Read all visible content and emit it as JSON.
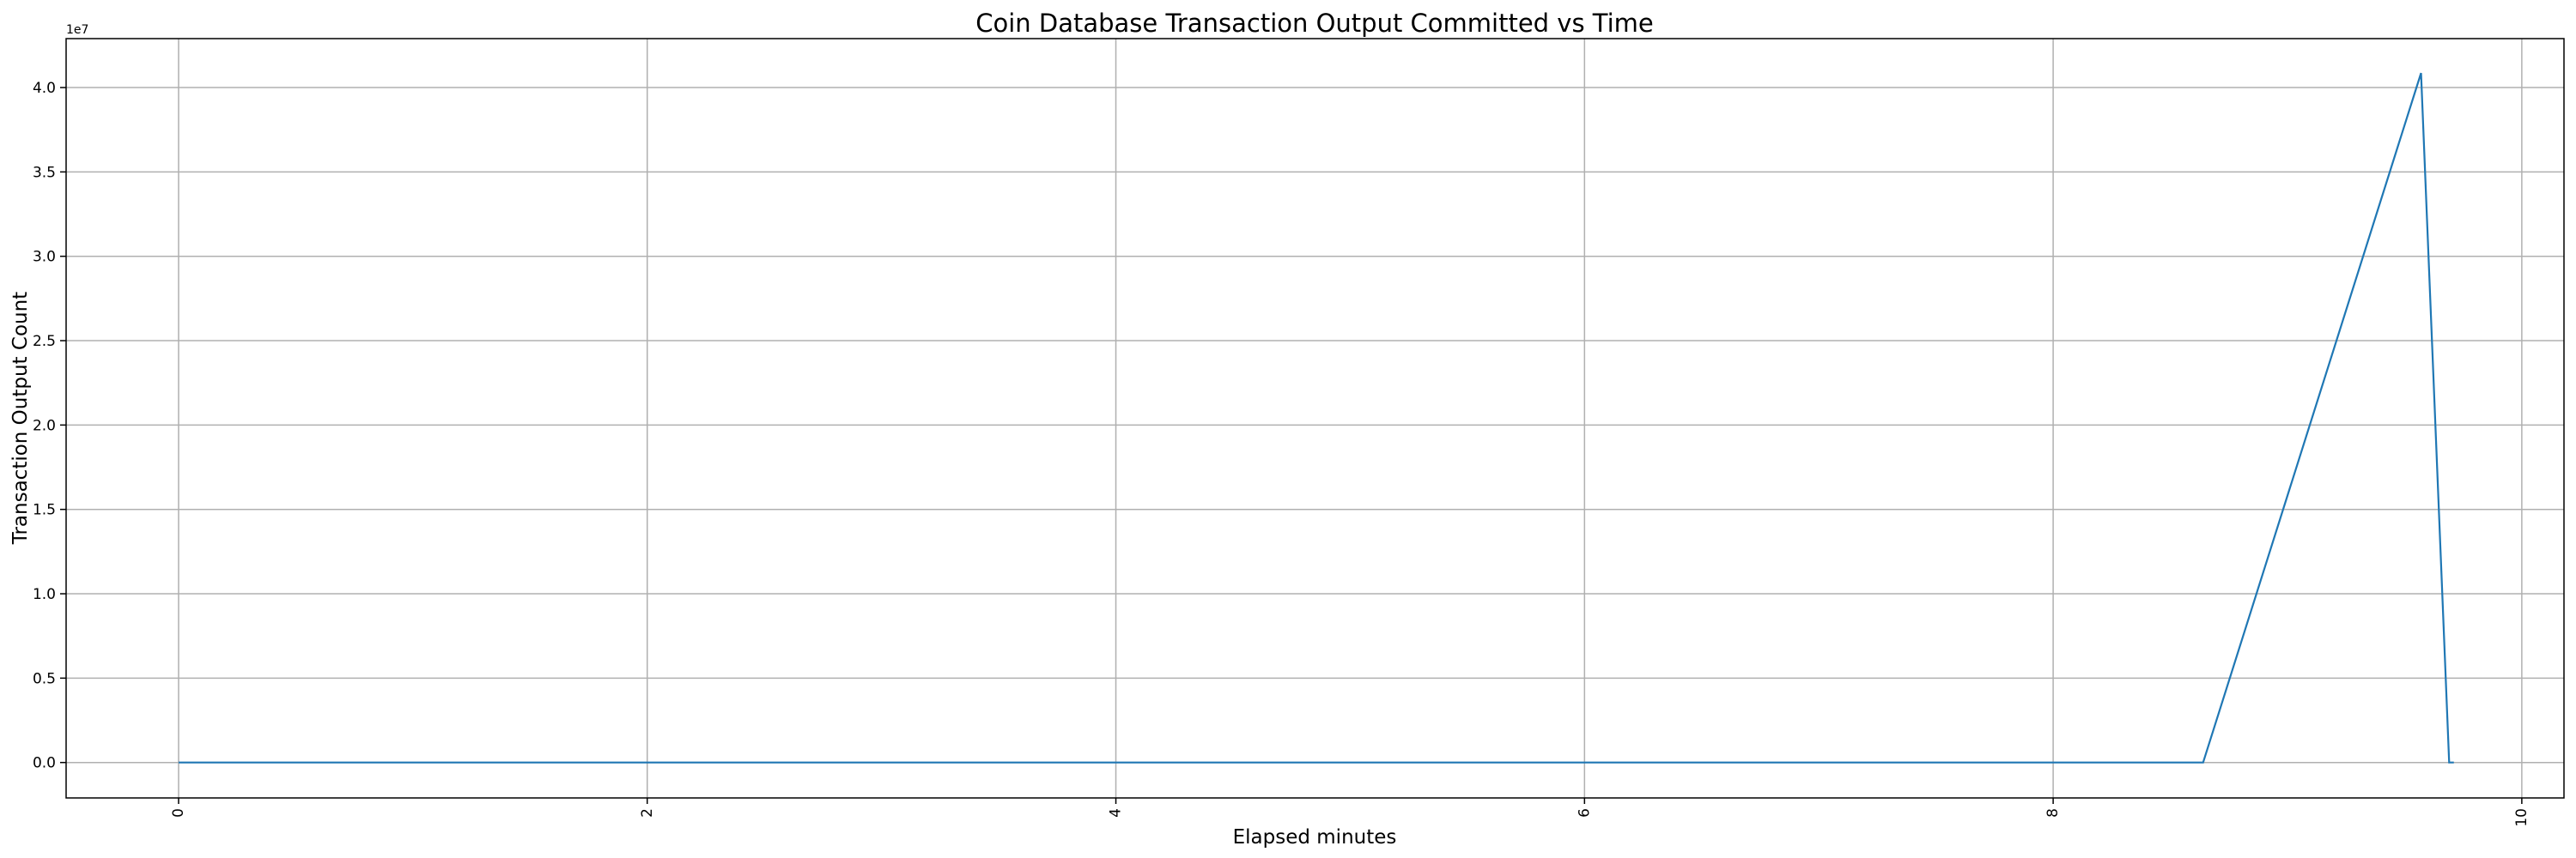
{
  "chart_data": {
    "type": "line",
    "title": "Coin Database Transaction Output Committed vs Time",
    "xlabel": "Elapsed minutes",
    "ylabel": "Transaction Output Count",
    "y_offset_label": "1e7",
    "xlim": [
      -0.48,
      10.18
    ],
    "ylim": [
      -2100000,
      42900000
    ],
    "x_ticks": [
      0,
      2,
      4,
      6,
      8,
      10
    ],
    "x_tick_labels": [
      "0",
      "2",
      "4",
      "6",
      "8",
      "10"
    ],
    "x_tick_rotation": 90,
    "y_ticks": [
      0,
      5000000,
      10000000,
      15000000,
      20000000,
      25000000,
      30000000,
      35000000,
      40000000
    ],
    "y_tick_labels": [
      "0.0",
      "0.5",
      "1.0",
      "1.5",
      "2.0",
      "2.5",
      "3.0",
      "3.5",
      "4.0"
    ],
    "grid": true,
    "series": [
      {
        "color": "#1f77b4",
        "x": [
          0,
          8.64,
          9.57,
          9.69,
          9.71
        ],
        "y": [
          0,
          0,
          40860000,
          0,
          0
        ]
      }
    ]
  }
}
